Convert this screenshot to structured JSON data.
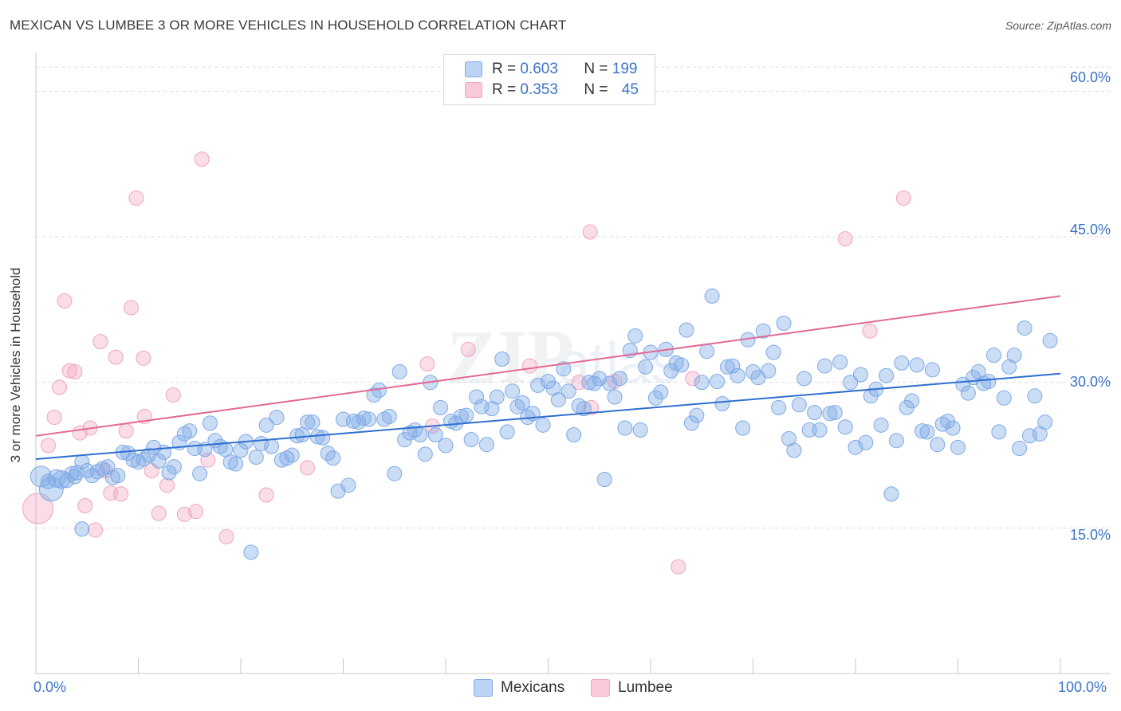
{
  "header": {
    "title": "MEXICAN VS LUMBEE 3 OR MORE VEHICLES IN HOUSEHOLD CORRELATION CHART",
    "source": "Source: ZipAtlas.com"
  },
  "legend_top": {
    "rows": [
      {
        "r_label": "R =",
        "r_value": "0.603",
        "n_label": "N =",
        "n_value": "199"
      },
      {
        "r_label": "R =",
        "r_value": "0.353",
        "n_label": "N =",
        "n_value": "45"
      }
    ]
  },
  "legend_bottom": {
    "mexicans": "Mexicans",
    "lumbee": "Lumbee"
  },
  "axes": {
    "ylabel": "3 or more Vehicles in Household",
    "yticks": [
      "60.0%",
      "45.0%",
      "30.0%",
      "15.0%"
    ],
    "xticks": [
      "0.0%",
      "100.0%"
    ]
  },
  "chart_data": {
    "type": "scatter",
    "title": "MEXICAN VS LUMBEE 3 OR MORE VEHICLES IN HOUSEHOLD CORRELATION CHART",
    "xlabel": "",
    "ylabel": "3 or more Vehicles in Household",
    "xlim": [
      0,
      100
    ],
    "ylim": [
      0,
      63
    ],
    "ytick_values": [
      15,
      30,
      45,
      60
    ],
    "grid": true,
    "legend_placement": "bottom",
    "colors": {
      "mexicans": "#7ea9e6",
      "lumbee": "#f0a4bd",
      "mexicans_line": "#2f6fcf",
      "lumbee_line": "#e26a94"
    },
    "series": [
      {
        "name": "Mexicans",
        "R": 0.603,
        "N": 199,
        "trend": {
          "x0": 0,
          "y0": 22.1,
          "x1": 100,
          "y1": 30.9
        },
        "points": [
          [
            0.5,
            20.3
          ],
          [
            1.5,
            19.0
          ],
          [
            2,
            20.1
          ],
          [
            2.5,
            20.0
          ],
          [
            3,
            19.9
          ],
          [
            3.5,
            20.6
          ],
          [
            4,
            20.7
          ],
          [
            4.5,
            14.9
          ],
          [
            4.5,
            21.8
          ],
          [
            5,
            20.9
          ],
          [
            5.5,
            20.4
          ],
          [
            6,
            20.8
          ],
          [
            6.5,
            21.1
          ],
          [
            7,
            21.3
          ],
          [
            7.5,
            20.2
          ],
          [
            8,
            20.4
          ],
          [
            8.5,
            22.8
          ],
          [
            9,
            22.7
          ],
          [
            9.5,
            22.0
          ],
          [
            10,
            21.8
          ],
          [
            10.5,
            22.1
          ],
          [
            11,
            22.5
          ],
          [
            11.5,
            23.3
          ],
          [
            12,
            21.9
          ],
          [
            12.5,
            22.8
          ],
          [
            13,
            20.7
          ],
          [
            13.5,
            21.3
          ],
          [
            14,
            23.8
          ],
          [
            14.5,
            24.7
          ],
          [
            15,
            25.0
          ],
          [
            15.5,
            23.2
          ],
          [
            16,
            20.6
          ],
          [
            16.5,
            23.1
          ],
          [
            17,
            25.8
          ],
          [
            17.5,
            24.0
          ],
          [
            18,
            23.4
          ],
          [
            18.5,
            23.1
          ],
          [
            19,
            21.8
          ],
          [
            19.5,
            21.6
          ],
          [
            20,
            23.0
          ],
          [
            20.5,
            23.9
          ],
          [
            21,
            12.5
          ],
          [
            21.5,
            22.3
          ],
          [
            22,
            23.7
          ],
          [
            22.5,
            25.6
          ],
          [
            23,
            23.4
          ],
          [
            23.5,
            26.4
          ],
          [
            24,
            22.0
          ],
          [
            24.5,
            22.2
          ],
          [
            25,
            22.5
          ],
          [
            25.5,
            24.5
          ],
          [
            26,
            24.6
          ],
          [
            26.5,
            25.9
          ],
          [
            27,
            25.9
          ],
          [
            27.5,
            24.4
          ],
          [
            28,
            24.3
          ],
          [
            28.5,
            22.7
          ],
          [
            29,
            22.2
          ],
          [
            29.5,
            18.8
          ],
          [
            30,
            26.2
          ],
          [
            30.5,
            19.4
          ],
          [
            31,
            26.0
          ],
          [
            31.5,
            25.9
          ],
          [
            32,
            26.3
          ],
          [
            32.5,
            26.2
          ],
          [
            33,
            28.7
          ],
          [
            33.5,
            29.2
          ],
          [
            34,
            26.2
          ],
          [
            34.5,
            26.5
          ],
          [
            35,
            20.6
          ],
          [
            35.5,
            31.1
          ],
          [
            36,
            24.1
          ],
          [
            36.5,
            24.8
          ],
          [
            37,
            25.1
          ],
          [
            37.5,
            24.6
          ],
          [
            38,
            22.6
          ],
          [
            38.5,
            30.0
          ],
          [
            39,
            24.6
          ],
          [
            39.5,
            27.4
          ],
          [
            40,
            23.5
          ],
          [
            40.5,
            26.0
          ],
          [
            41,
            25.8
          ],
          [
            41.5,
            26.5
          ],
          [
            42,
            26.6
          ],
          [
            42.5,
            24.1
          ],
          [
            43,
            28.5
          ],
          [
            43.5,
            27.5
          ],
          [
            44,
            23.6
          ],
          [
            44.5,
            27.3
          ],
          [
            45,
            28.5
          ],
          [
            45.5,
            32.4
          ],
          [
            46,
            24.9
          ],
          [
            46.5,
            29.1
          ],
          [
            47,
            27.5
          ],
          [
            47.5,
            27.9
          ],
          [
            48,
            26.4
          ],
          [
            48.5,
            26.8
          ],
          [
            49,
            29.7
          ],
          [
            49.5,
            25.6
          ],
          [
            50,
            30.1
          ],
          [
            50.5,
            29.4
          ],
          [
            51,
            28.2
          ],
          [
            51.5,
            31.4
          ],
          [
            52,
            29.1
          ],
          [
            52.5,
            24.6
          ],
          [
            53,
            27.6
          ],
          [
            53.5,
            27.3
          ],
          [
            54,
            30.0
          ],
          [
            54.5,
            29.9
          ],
          [
            55,
            30.4
          ],
          [
            55.5,
            20.0
          ],
          [
            56,
            29.9
          ],
          [
            56.5,
            28.5
          ],
          [
            57,
            30.4
          ],
          [
            57.5,
            25.3
          ],
          [
            58,
            33.3
          ],
          [
            58.5,
            34.8
          ],
          [
            59,
            25.1
          ],
          [
            59.5,
            31.6
          ],
          [
            60,
            33.1
          ],
          [
            60.5,
            28.4
          ],
          [
            61,
            29.0
          ],
          [
            61.5,
            33.4
          ],
          [
            62,
            31.2
          ],
          [
            62.5,
            32.0
          ],
          [
            63,
            31.8
          ],
          [
            63.5,
            35.4
          ],
          [
            64,
            25.8
          ],
          [
            64.5,
            26.6
          ],
          [
            65,
            30.0
          ],
          [
            65.5,
            33.2
          ],
          [
            66,
            38.9
          ],
          [
            66.5,
            30.1
          ],
          [
            67,
            27.8
          ],
          [
            67.5,
            31.6
          ],
          [
            68,
            31.7
          ],
          [
            68.5,
            30.7
          ],
          [
            69,
            25.3
          ],
          [
            69.5,
            34.4
          ],
          [
            70,
            31.1
          ],
          [
            70.5,
            30.5
          ],
          [
            71,
            35.3
          ],
          [
            71.5,
            31.2
          ],
          [
            72,
            33.1
          ],
          [
            72.5,
            27.4
          ],
          [
            73,
            36.1
          ],
          [
            73.5,
            24.2
          ],
          [
            74,
            23.0
          ],
          [
            74.5,
            27.7
          ],
          [
            75,
            30.4
          ],
          [
            75.5,
            25.1
          ],
          [
            76,
            26.9
          ],
          [
            76.5,
            25.1
          ],
          [
            77,
            31.7
          ],
          [
            77.5,
            26.8
          ],
          [
            78,
            26.9
          ],
          [
            78.5,
            32.1
          ],
          [
            79,
            25.4
          ],
          [
            79.5,
            30.0
          ],
          [
            80,
            23.3
          ],
          [
            80.5,
            30.8
          ],
          [
            81,
            23.8
          ],
          [
            81.5,
            28.6
          ],
          [
            82,
            29.3
          ],
          [
            82.5,
            25.6
          ],
          [
            83,
            30.7
          ],
          [
            83.5,
            18.5
          ],
          [
            84,
            24.0
          ],
          [
            84.5,
            32.0
          ],
          [
            85,
            27.4
          ],
          [
            85.5,
            28.1
          ],
          [
            86,
            31.8
          ],
          [
            86.5,
            25.0
          ],
          [
            87,
            24.9
          ],
          [
            87.5,
            31.3
          ],
          [
            88,
            23.6
          ],
          [
            88.5,
            25.7
          ],
          [
            89,
            26.0
          ],
          [
            89.5,
            25.3
          ],
          [
            90,
            23.3
          ],
          [
            90.5,
            29.8
          ],
          [
            91,
            28.9
          ],
          [
            91.5,
            30.5
          ],
          [
            92,
            31.1
          ],
          [
            92.5,
            29.9
          ],
          [
            93,
            30.1
          ],
          [
            93.5,
            32.8
          ],
          [
            94,
            24.9
          ],
          [
            94.5,
            28.4
          ],
          [
            95,
            31.6
          ],
          [
            95.5,
            32.8
          ],
          [
            96,
            23.2
          ],
          [
            96.5,
            35.6
          ],
          [
            97,
            24.5
          ],
          [
            97.5,
            28.6
          ],
          [
            98,
            24.7
          ],
          [
            98.5,
            25.9
          ],
          [
            99,
            34.3
          ],
          [
            1.2,
            19.8
          ],
          [
            3.8,
            20.3
          ]
        ]
      },
      {
        "name": "Lumbee",
        "R": 0.353,
        "N": 45,
        "trend": {
          "x0": 0,
          "y0": 24.5,
          "x1": 100,
          "y1": 38.9
        },
        "points": [
          [
            0.2,
            17.0
          ],
          [
            1.2,
            23.5
          ],
          [
            1.8,
            26.4
          ],
          [
            2.3,
            29.5
          ],
          [
            2.8,
            38.4
          ],
          [
            3.3,
            31.2
          ],
          [
            3.8,
            31.1
          ],
          [
            4.3,
            24.8
          ],
          [
            4.8,
            17.3
          ],
          [
            5.3,
            25.3
          ],
          [
            5.8,
            14.8
          ],
          [
            6.3,
            34.2
          ],
          [
            6.8,
            20.9
          ],
          [
            7.3,
            18.6
          ],
          [
            7.8,
            32.6
          ],
          [
            8.3,
            18.5
          ],
          [
            8.8,
            25.0
          ],
          [
            9.3,
            37.7
          ],
          [
            9.8,
            49.0
          ],
          [
            10.5,
            32.5
          ],
          [
            10.6,
            26.5
          ],
          [
            11.3,
            20.9
          ],
          [
            12,
            16.5
          ],
          [
            12.8,
            19.4
          ],
          [
            13.4,
            28.7
          ],
          [
            14.5,
            16.4
          ],
          [
            15.6,
            16.7
          ],
          [
            16.2,
            53.0
          ],
          [
            16.8,
            22.0
          ],
          [
            18.6,
            14.1
          ],
          [
            22.5,
            18.4
          ],
          [
            26.5,
            21.2
          ],
          [
            38.2,
            31.9
          ],
          [
            38.7,
            25.5
          ],
          [
            42.2,
            33.4
          ],
          [
            48.2,
            31.7
          ],
          [
            53.0,
            30.0
          ],
          [
            54.1,
            45.5
          ],
          [
            54.2,
            27.4
          ],
          [
            56.5,
            30.1
          ],
          [
            62.7,
            11.0
          ],
          [
            64.1,
            30.4
          ],
          [
            79.0,
            44.8
          ],
          [
            81.4,
            35.3
          ],
          [
            84.7,
            49.0
          ]
        ]
      }
    ]
  }
}
